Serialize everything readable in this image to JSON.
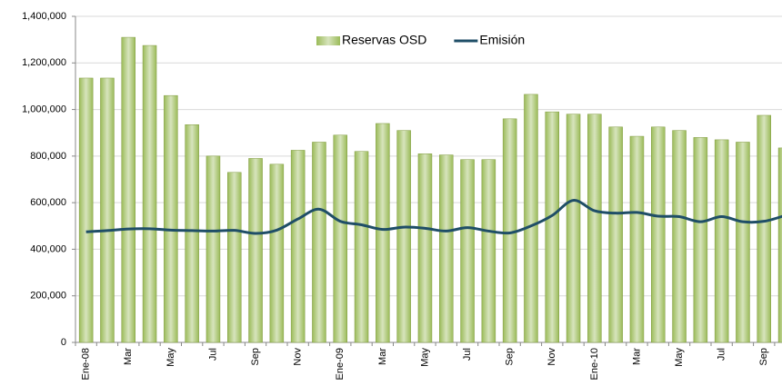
{
  "chart_data": {
    "type": "bar-line",
    "categories": [
      "Ene-08",
      null,
      "Mar",
      null,
      "May",
      null,
      "Jul",
      null,
      "Sep",
      null,
      "Nov",
      null,
      "Ene-09",
      null,
      "Mar",
      null,
      "May",
      null,
      "Jul",
      null,
      "Sep",
      null,
      "Nov",
      null,
      "Ene-10",
      null,
      "Mar",
      null,
      "May",
      null,
      "Jul",
      null,
      "Sep",
      null
    ],
    "series": [
      {
        "name": "Reservas OSD",
        "type": "bar",
        "color": "#9bbb59",
        "values": [
          1135000,
          1135000,
          1310000,
          1275000,
          1060000,
          935000,
          800000,
          730000,
          790000,
          765000,
          825000,
          860000,
          890000,
          820000,
          940000,
          910000,
          810000,
          805000,
          785000,
          785000,
          960000,
          1065000,
          990000,
          980000,
          980000,
          925000,
          885000,
          925000,
          910000,
          880000,
          870000,
          860000,
          975000,
          835000
        ]
      },
      {
        "name": "Emisión",
        "type": "line",
        "color": "#1f4e67",
        "values": [
          475000,
          480000,
          487000,
          488000,
          482000,
          480000,
          478000,
          481000,
          468000,
          482000,
          530000,
          572000,
          520000,
          505000,
          485000,
          495000,
          490000,
          478000,
          493000,
          478000,
          470000,
          500000,
          545000,
          610000,
          565000,
          555000,
          558000,
          542000,
          540000,
          518000,
          540000,
          518000,
          520000,
          545000
        ]
      }
    ],
    "ylim": [
      0,
      1400000
    ],
    "yticks": [
      0,
      {
        "value": 200000,
        "label": "200,000"
      },
      {
        "value": 400000,
        "label": "400,000"
      },
      {
        "value": 600000,
        "label": "600,000"
      },
      {
        "value": 800000,
        "label": "800,000"
      },
      {
        "value": 1000000,
        "label": "1,000,000"
      },
      {
        "value": 1200000,
        "label": "1,200,000"
      },
      {
        "value": 1400000,
        "label": "1,400,000"
      }
    ],
    "grid": true,
    "legend": "top"
  }
}
